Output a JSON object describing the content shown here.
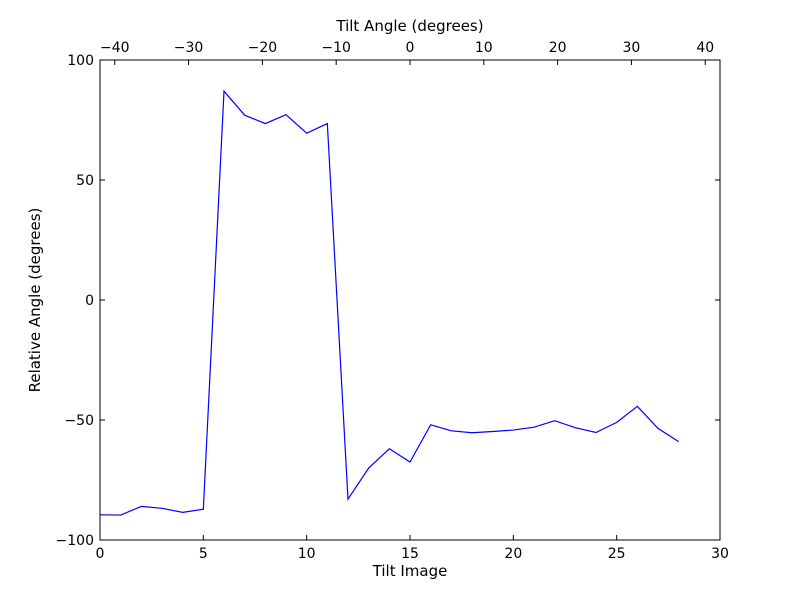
{
  "chart_data": {
    "type": "line",
    "title": "",
    "xlabel": "Tilt Image",
    "ylabel": "Relative Angle (degrees)",
    "top_xlabel": "Tilt Angle (degrees)",
    "xlim": [
      0,
      30
    ],
    "ylim": [
      -100,
      100
    ],
    "top_xlim": [
      -42,
      42
    ],
    "xticks": [
      0,
      5,
      10,
      15,
      20,
      25,
      30
    ],
    "yticks": [
      -100,
      -50,
      0,
      50,
      100
    ],
    "top_xticks": [
      -40,
      -30,
      -20,
      -10,
      0,
      10,
      20,
      30,
      40
    ],
    "xtick_labels": [
      "0",
      "5",
      "10",
      "15",
      "20",
      "25",
      "30"
    ],
    "ytick_labels": [
      "−100",
      "−50",
      "0",
      "50",
      "100"
    ],
    "top_xtick_labels": [
      "−40",
      "−30",
      "−20",
      "−10",
      "0",
      "10",
      "20",
      "30",
      "40"
    ],
    "grid": false,
    "legend": "none",
    "line_color": "#0000ff",
    "series": [
      {
        "x": [
          0,
          1,
          2,
          3,
          4,
          5,
          6,
          7,
          8,
          9,
          10,
          11,
          12,
          13,
          14,
          15,
          16,
          17,
          18,
          19,
          20,
          21,
          22,
          23,
          24,
          25,
          26,
          27,
          28
        ],
        "values": [
          -89.5,
          -89.6,
          -86.0,
          -86.8,
          -88.5,
          -87.2,
          87.0,
          77.0,
          73.5,
          77.2,
          69.5,
          73.5,
          -83.0,
          -70.0,
          -62.0,
          -67.5,
          -52.0,
          -54.5,
          -55.3,
          -54.8,
          -54.2,
          -53.0,
          -50.3,
          -53.2,
          -55.2,
          -51.0,
          -44.3,
          -53.5,
          -59.0
        ]
      }
    ]
  }
}
